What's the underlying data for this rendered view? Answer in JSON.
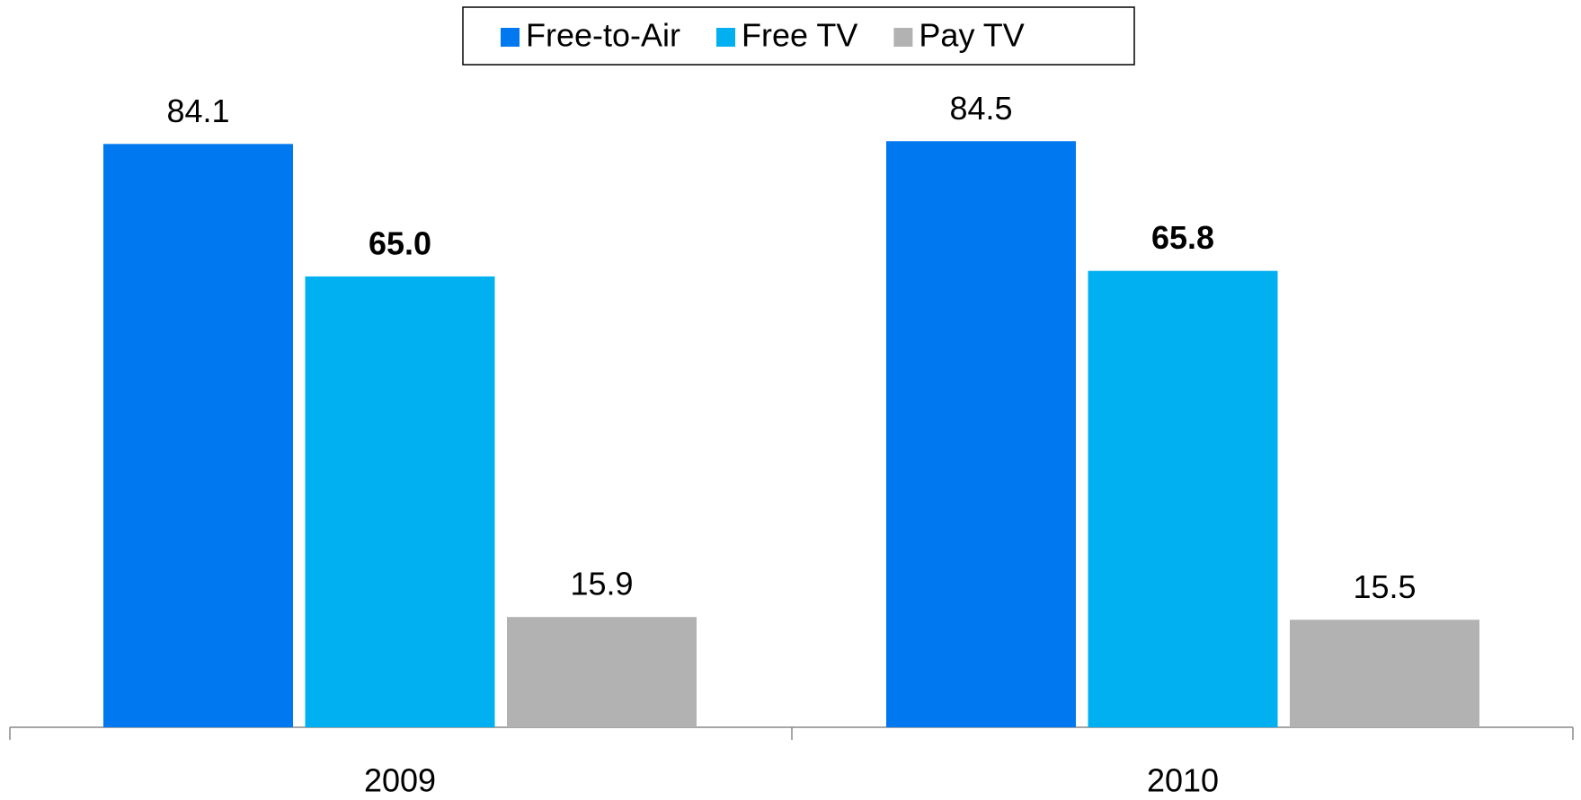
{
  "chart_data": {
    "type": "bar",
    "categories": [
      "2009",
      "2010"
    ],
    "series": [
      {
        "name": "Free-to-Air",
        "color": "#0078ef",
        "values": [
          84.1,
          84.5
        ],
        "value_labels": [
          "84.1",
          "84.5"
        ],
        "label_bold": false
      },
      {
        "name": "Free TV",
        "color": "#00b0f0",
        "values": [
          65.0,
          65.8
        ],
        "value_labels": [
          "65.0",
          "65.8"
        ],
        "label_bold": true
      },
      {
        "name": "Pay TV",
        "color": "#b2b2b2",
        "values": [
          15.9,
          15.5
        ],
        "value_labels": [
          "15.9",
          "15.5"
        ],
        "label_bold": false
      }
    ],
    "legend": "top"
  }
}
